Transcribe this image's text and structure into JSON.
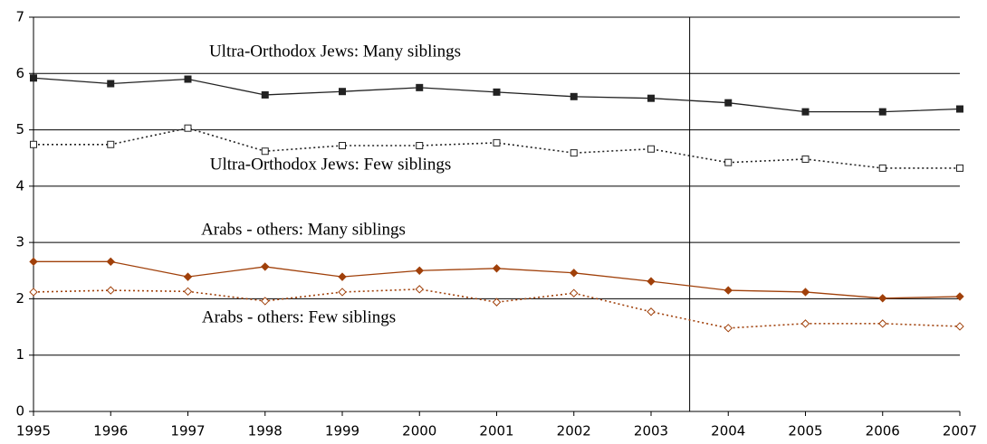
{
  "chart_data": {
    "type": "line",
    "x": [
      1995,
      1996,
      1997,
      1998,
      1999,
      2000,
      2001,
      2002,
      2003,
      2004,
      2005,
      2006,
      2007
    ],
    "xlim": [
      1995,
      2007
    ],
    "xticks": [
      1995,
      1996,
      1997,
      1998,
      1999,
      2000,
      2001,
      2002,
      2003,
      2004,
      2005,
      2006,
      2007
    ],
    "ylim": [
      0,
      7
    ],
    "yticks": [
      0,
      1,
      2,
      3,
      4,
      5,
      6,
      7
    ],
    "grid": true,
    "vline": 2003.5,
    "series": [
      {
        "name": "Ultra-Orthodox Jews: Many siblings",
        "color": "#222222",
        "marker": "square",
        "filled": true,
        "dashed": false,
        "values": [
          5.92,
          5.82,
          5.9,
          5.62,
          5.68,
          5.75,
          5.67,
          5.59,
          5.56,
          5.48,
          5.32,
          5.32,
          5.37
        ]
      },
      {
        "name": "Ultra-Orthodox Jews: Few siblings",
        "color": "#222222",
        "marker": "square",
        "filled": false,
        "dashed": true,
        "values": [
          4.74,
          4.74,
          5.03,
          4.62,
          4.72,
          4.72,
          4.77,
          4.59,
          4.66,
          4.42,
          4.48,
          4.32,
          4.32
        ]
      },
      {
        "name": "Arabs - others: Many siblings",
        "color": "#a0400a",
        "marker": "diamond",
        "filled": true,
        "dashed": false,
        "values": [
          2.66,
          2.66,
          2.39,
          2.57,
          2.39,
          2.5,
          2.54,
          2.46,
          2.31,
          2.15,
          2.12,
          2.01,
          2.04
        ]
      },
      {
        "name": "Arabs - others: Few siblings",
        "color": "#a0400a",
        "marker": "diamond",
        "filled": false,
        "dashed": true,
        "values": [
          2.12,
          2.15,
          2.13,
          1.96,
          2.12,
          2.17,
          1.94,
          2.1,
          1.77,
          1.48,
          1.56,
          1.56,
          1.51
        ]
      }
    ]
  }
}
